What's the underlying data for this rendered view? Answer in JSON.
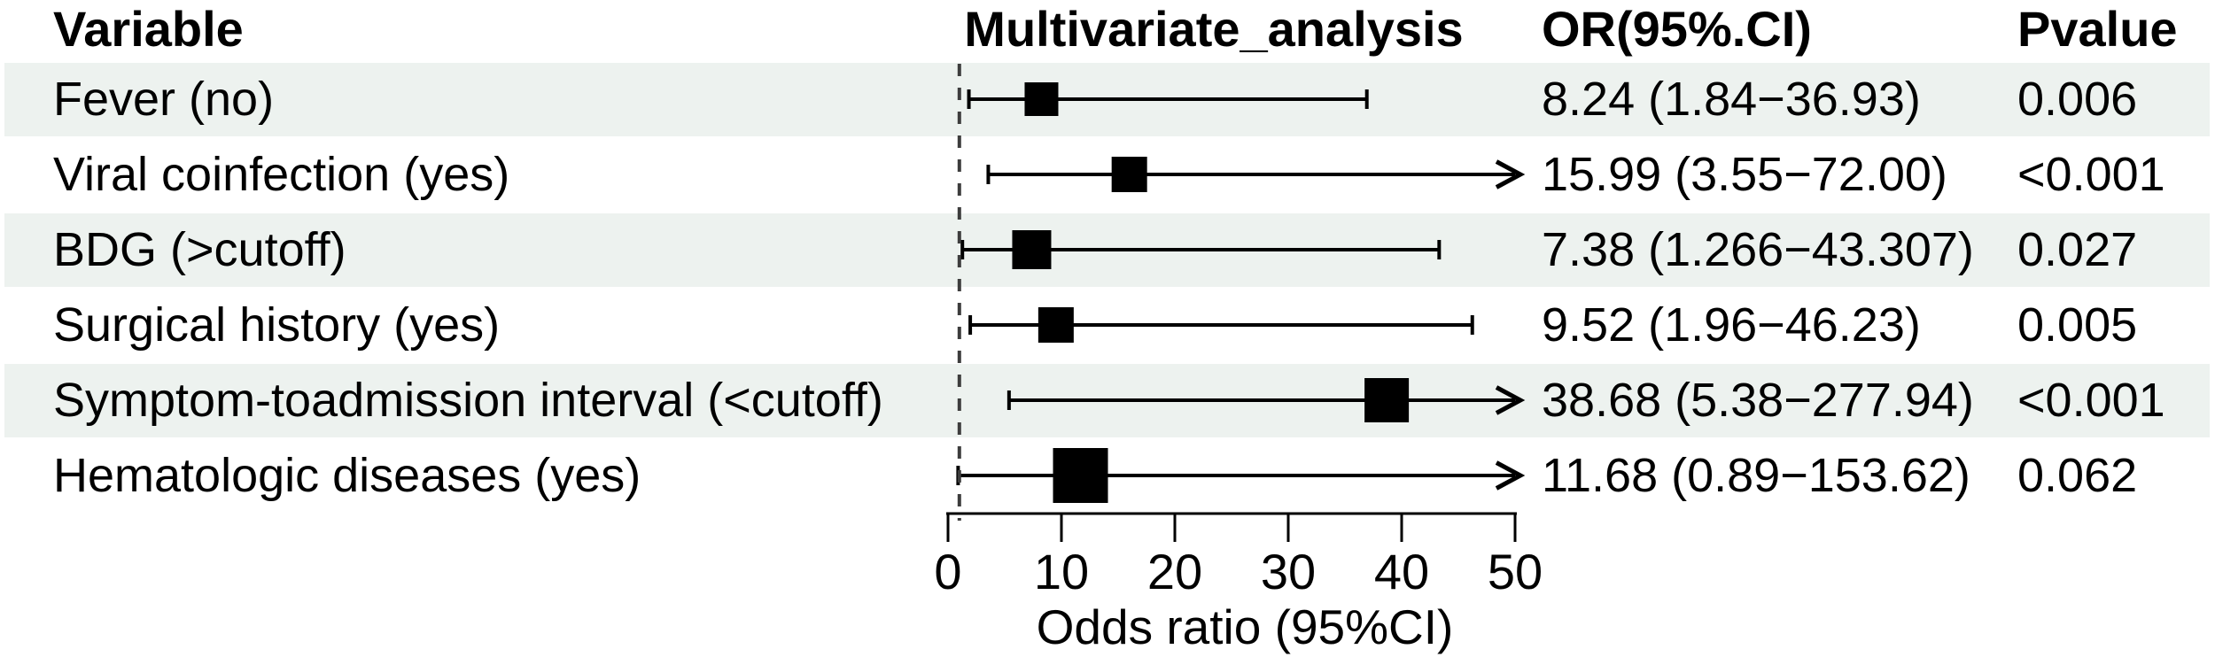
{
  "header": {
    "variable": "Variable",
    "analysis": "Multivariate_analysis",
    "or_ci": "OR(95%.CI)",
    "pvalue": "Pvalue"
  },
  "colors": {
    "stripe": "#edf2ef",
    "text": "#000000",
    "line": "#000000",
    "marker": "#000000",
    "reference_line": "#3d3d3d",
    "background": "#ffffff"
  },
  "chart_data": {
    "type": "forest",
    "title": "",
    "xlabel": "Odds ratio (95%CI)",
    "xlim": [
      0,
      50
    ],
    "xticks": [
      0,
      10,
      20,
      30,
      40,
      50
    ],
    "reference_line_x": 1,
    "arrow_clip_x": 50,
    "columns": [
      "Variable",
      "Multivariate_analysis",
      "OR(95%.CI)",
      "Pvalue"
    ],
    "rows": [
      {
        "label": "Fever (no)",
        "or": 8.24,
        "ci_low": 1.84,
        "ci_high": 36.93,
        "or_ci_text": "8.24 (1.84−36.93)",
        "pvalue": "0.006",
        "box_size": 38
      },
      {
        "label": "Viral coinfection (yes)",
        "or": 15.99,
        "ci_low": 3.55,
        "ci_high": 72.0,
        "or_ci_text": "15.99 (3.55−72.00)",
        "pvalue": "<0.001",
        "box_size": 40
      },
      {
        "label": "BDG (>cutoff)",
        "or": 7.38,
        "ci_low": 1.266,
        "ci_high": 43.307,
        "or_ci_text": "7.38 (1.266−43.307)",
        "pvalue": "0.027",
        "box_size": 44
      },
      {
        "label": "Surgical history (yes)",
        "or": 9.52,
        "ci_low": 1.96,
        "ci_high": 46.23,
        "or_ci_text": "9.52 (1.96−46.23)",
        "pvalue": "0.005",
        "box_size": 40
      },
      {
        "label": "Symptom-toadmission interval (<cutoff)",
        "or": 38.68,
        "ci_low": 5.38,
        "ci_high": 277.94,
        "or_ci_text": "38.68 (5.38−277.94)",
        "pvalue": "<0.001",
        "box_size": 50
      },
      {
        "label": "Hematologic diseases (yes)",
        "or": 11.68,
        "ci_low": 0.89,
        "ci_high": 153.62,
        "or_ci_text": "11.68 (0.89−153.62)",
        "pvalue": "0.062",
        "box_size": 62
      }
    ]
  }
}
